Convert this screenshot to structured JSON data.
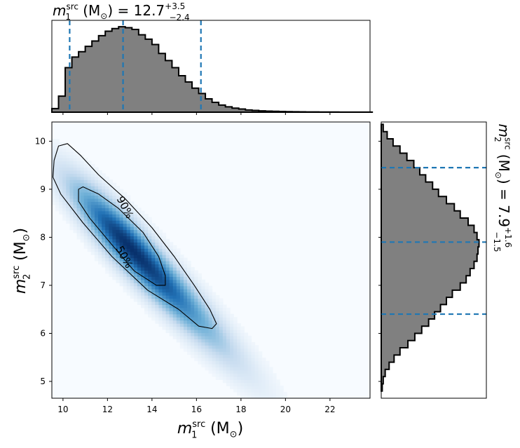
{
  "chart_data": [
    {
      "type": "area",
      "panel": "top-marginal",
      "title": {
        "var": "m",
        "sub": "1",
        "sup": "src",
        "unit": "(M",
        "unit_sub": "⊙",
        "close": ")",
        "eq": "= 12.7",
        "plus": "+3.5",
        "minus": "−2.4"
      },
      "x": [
        9.5,
        9.8,
        10.1,
        10.4,
        10.7,
        11.0,
        11.3,
        11.6,
        11.9,
        12.2,
        12.5,
        12.8,
        13.1,
        13.4,
        13.7,
        14.0,
        14.3,
        14.6,
        14.9,
        15.2,
        15.5,
        15.8,
        16.1,
        16.4,
        16.7,
        17.0,
        17.3,
        17.6,
        17.9,
        18.2,
        18.5,
        18.8,
        19.1,
        19.4,
        19.7,
        20.0,
        20.3,
        20.6,
        20.9,
        21.2,
        21.5,
        21.8,
        22.1,
        22.4,
        22.7,
        23.0,
        23.3,
        23.6
      ],
      "values": [
        0.04,
        0.18,
        0.5,
        0.62,
        0.68,
        0.74,
        0.8,
        0.86,
        0.91,
        0.94,
        0.96,
        0.95,
        0.93,
        0.87,
        0.82,
        0.76,
        0.66,
        0.58,
        0.5,
        0.41,
        0.34,
        0.27,
        0.21,
        0.15,
        0.11,
        0.08,
        0.06,
        0.045,
        0.035,
        0.025,
        0.02,
        0.015,
        0.012,
        0.01,
        0.008,
        0.006,
        0.005,
        0.004,
        0.003,
        0.003,
        0.002,
        0.002,
        0.002,
        0.001,
        0.001,
        0.001,
        0.001,
        0.001
      ],
      "quantiles": [
        10.3,
        12.7,
        16.2
      ],
      "xlim": [
        9.5,
        23.8
      ]
    },
    {
      "type": "heatmap",
      "panel": "joint",
      "xlabel": {
        "var": "m",
        "sub": "1",
        "sup": "src",
        "unit": "(M",
        "unit_sub": "⊙",
        "close": ")"
      },
      "ylabel": {
        "var": "m",
        "sub": "2",
        "sup": "src",
        "unit": "(M",
        "unit_sub": "⊙",
        "close": ")"
      },
      "xlim": [
        9.5,
        23.8
      ],
      "ylim": [
        4.65,
        10.4
      ],
      "xticks": [
        "10",
        "12",
        "14",
        "16",
        "18",
        "20",
        "22"
      ],
      "yticks": [
        "5",
        "6",
        "7",
        "8",
        "9",
        "10"
      ],
      "contour_labels": [
        "90%",
        "50%"
      ],
      "mode": [
        13.0,
        7.8
      ],
      "contour_50": [
        [
          10.7,
          9.0
        ],
        [
          10.9,
          9.05
        ],
        [
          11.6,
          8.9
        ],
        [
          12.5,
          8.6
        ],
        [
          13.6,
          8.1
        ],
        [
          14.3,
          7.6
        ],
        [
          14.6,
          7.2
        ],
        [
          14.6,
          7.0
        ],
        [
          14.2,
          7.0
        ],
        [
          13.2,
          7.3
        ],
        [
          12.1,
          7.9
        ],
        [
          11.2,
          8.4
        ],
        [
          10.7,
          8.75
        ]
      ],
      "contour_90": [
        [
          9.6,
          9.6
        ],
        [
          9.8,
          9.9
        ],
        [
          10.2,
          9.95
        ],
        [
          10.8,
          9.7
        ],
        [
          11.6,
          9.3
        ],
        [
          12.8,
          8.8
        ],
        [
          14.0,
          8.2
        ],
        [
          15.0,
          7.6
        ],
        [
          15.9,
          7.0
        ],
        [
          16.6,
          6.5
        ],
        [
          16.9,
          6.2
        ],
        [
          16.7,
          6.1
        ],
        [
          16.1,
          6.15
        ],
        [
          15.2,
          6.5
        ],
        [
          13.8,
          6.9
        ],
        [
          12.2,
          7.6
        ],
        [
          10.9,
          8.3
        ],
        [
          9.9,
          8.9
        ],
        [
          9.55,
          9.25
        ]
      ]
    },
    {
      "type": "area",
      "panel": "right-marginal",
      "side_label": {
        "var": "m",
        "sub": "2",
        "sup": "src",
        "unit": "(M",
        "unit_sub": "⊙",
        "close": ")",
        "eq": "= 7.9",
        "plus": "+1.6",
        "minus": "−1.5"
      },
      "y": [
        4.8,
        4.95,
        5.1,
        5.25,
        5.4,
        5.55,
        5.7,
        5.85,
        6.0,
        6.15,
        6.3,
        6.45,
        6.6,
        6.75,
        6.9,
        7.05,
        7.2,
        7.35,
        7.5,
        7.65,
        7.8,
        7.95,
        8.1,
        8.25,
        8.4,
        8.55,
        8.7,
        8.85,
        9.0,
        9.15,
        9.3,
        9.45,
        9.6,
        9.75,
        9.9,
        10.05,
        10.2
      ],
      "values": [
        0.01,
        0.02,
        0.04,
        0.08,
        0.13,
        0.19,
        0.27,
        0.34,
        0.41,
        0.48,
        0.54,
        0.6,
        0.66,
        0.72,
        0.8,
        0.86,
        0.9,
        0.94,
        0.97,
        0.98,
        0.99,
        0.97,
        0.94,
        0.88,
        0.8,
        0.74,
        0.66,
        0.58,
        0.52,
        0.45,
        0.39,
        0.33,
        0.26,
        0.19,
        0.12,
        0.06,
        0.02
      ],
      "quantiles": [
        6.4,
        7.9,
        9.45
      ]
    }
  ],
  "colors": {
    "hist_fill": "#808080",
    "hist_edge": "#000000",
    "quantile": "#1f77b4",
    "cmap_low": "#f7fbff",
    "cmap_high": "#08306b"
  }
}
